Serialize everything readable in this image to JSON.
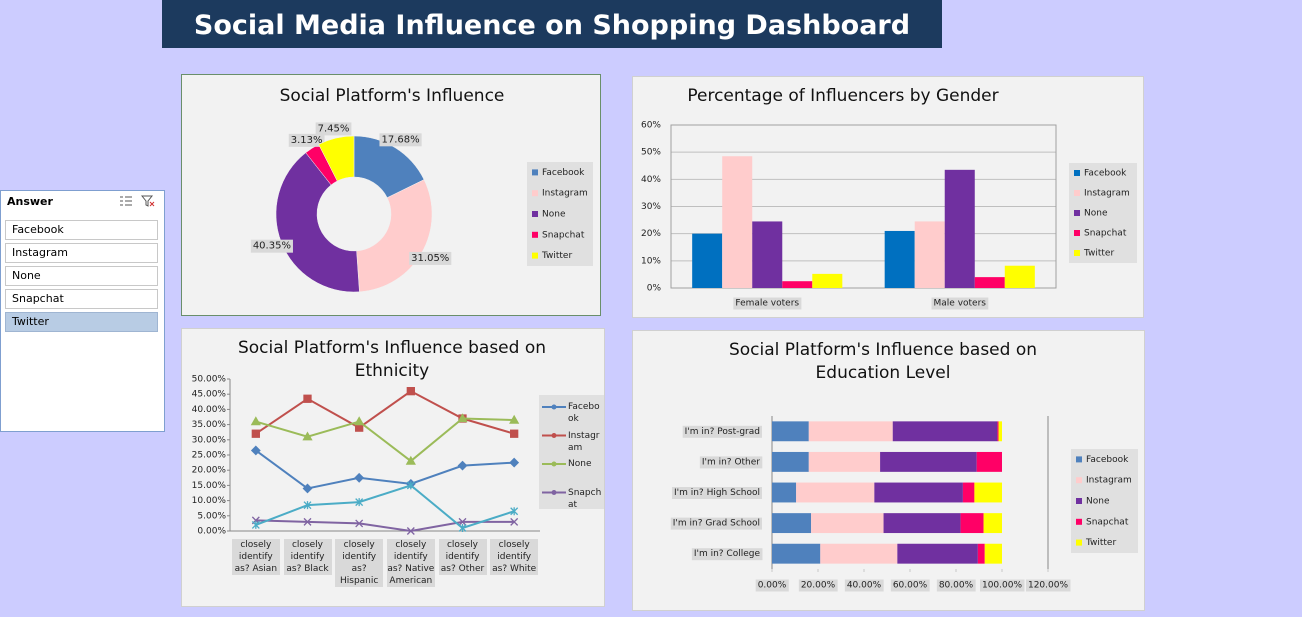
{
  "title": "Social Media Influence on Shopping Dashboard",
  "slicer": {
    "header": "Answer",
    "items": [
      "Facebook",
      "Instagram",
      "None",
      "Snapchat",
      "Twitter"
    ],
    "selected": 4
  },
  "chart_data": [
    {
      "type": "donut",
      "title": "Social Platform's Influence",
      "categories": [
        "Facebook",
        "Instagram",
        "None",
        "Snapchat",
        "Twitter"
      ],
      "values": [
        17.68,
        31.05,
        40.35,
        3.13,
        7.45
      ],
      "value_labels": [
        "17.68%",
        "31.05%",
        "40.35%",
        "3.13%",
        "7.45%"
      ],
      "colors": [
        "#4f81bd",
        "#ffcccc",
        "#7030a0",
        "#ff0066",
        "#ffff00"
      ],
      "legend": "right"
    },
    {
      "type": "bar",
      "title": "Percentage of Influencers by Gender",
      "categories": [
        "Female voters",
        "Male voters"
      ],
      "series": [
        {
          "name": "Facebook",
          "color": "#0070c0",
          "values": [
            20,
            21
          ]
        },
        {
          "name": "Instagram",
          "color": "#ffcccc",
          "values": [
            48.5,
            24.5
          ]
        },
        {
          "name": "None",
          "color": "#7030a0",
          "values": [
            24.5,
            43.5
          ]
        },
        {
          "name": "Snapchat",
          "color": "#ff0066",
          "values": [
            2.5,
            4
          ]
        },
        {
          "name": "Twitter",
          "color": "#ffff00",
          "values": [
            5.2,
            8.2
          ]
        }
      ],
      "ylim": [
        0,
        60
      ],
      "yticks": [
        {
          "value": 0,
          "label": "0%"
        },
        {
          "value": 10,
          "label": "10%"
        },
        {
          "value": 20,
          "label": "20%"
        },
        {
          "value": 30,
          "label": "30%"
        },
        {
          "value": 40,
          "label": "40%"
        },
        {
          "value": 50,
          "label": "50%"
        },
        {
          "value": 60,
          "label": "60%"
        }
      ],
      "grid": true,
      "legend": "right"
    },
    {
      "type": "line",
      "title": "Social Platform's Influence based on Ethnicity",
      "categories": [
        "closely identify as? Asian",
        "closely identify as? Black",
        "closely identify as? Hispanic",
        "closely identify as? Native American",
        "closely identify as? Other",
        "closely identify as? White"
      ],
      "series": [
        {
          "name": "Facebook",
          "color": "#4f81bd",
          "values": [
            26.5,
            14,
            17.5,
            15.5,
            21.5,
            22.5
          ]
        },
        {
          "name": "Instagram",
          "color": "#c0504d",
          "values": [
            32,
            43.5,
            34,
            46,
            37,
            32
          ]
        },
        {
          "name": "None",
          "color": "#9bbb59",
          "values": [
            36,
            31,
            36,
            23,
            37,
            36.5
          ]
        },
        {
          "name": "Snapchat",
          "color": "#8064a2",
          "values": [
            3.5,
            3,
            2.5,
            0,
            3,
            3
          ]
        },
        {
          "color": "#4bacc6",
          "values": [
            2,
            8.5,
            9.5,
            15,
            1,
            6.5
          ]
        }
      ],
      "ylim": [
        0,
        50
      ],
      "yticks": [
        {
          "value": 0,
          "label": "0.00%"
        },
        {
          "value": 5,
          "label": "5.00%"
        },
        {
          "value": 10,
          "label": "10.00%"
        },
        {
          "value": 15,
          "label": "15.00%"
        },
        {
          "value": 20,
          "label": "20.00%"
        },
        {
          "value": 25,
          "label": "25.00%"
        },
        {
          "value": 30,
          "label": "30.00%"
        },
        {
          "value": 35,
          "label": "35.00%"
        },
        {
          "value": 40,
          "label": "40.00%"
        },
        {
          "value": 45,
          "label": "45.00%"
        },
        {
          "value": 50,
          "label": "50.00%"
        }
      ],
      "legend": "right"
    },
    {
      "type": "hbar_stacked",
      "title": "Social Platform's Influence based on Education Level",
      "categories": [
        "I'm in? Post-grad",
        "I'm in? Other",
        "I'm in? High School",
        "I'm in? Grad School",
        "I'm in? College"
      ],
      "series": [
        {
          "name": "Facebook",
          "color": "#4f81bd",
          "values": [
            16,
            16,
            10.5,
            17,
            21
          ]
        },
        {
          "name": "Instagram",
          "color": "#ffcccc",
          "values": [
            36.5,
            31,
            34,
            31.5,
            33.5
          ]
        },
        {
          "name": "None",
          "color": "#7030a0",
          "values": [
            45.5,
            42,
            38.5,
            33.5,
            35
          ]
        },
        {
          "name": "Snapchat",
          "color": "#ff0066",
          "values": [
            0.5,
            11,
            5,
            10,
            3
          ]
        },
        {
          "name": "Twitter",
          "color": "#ffff00",
          "values": [
            1.5,
            0,
            12,
            8,
            7.5
          ]
        }
      ],
      "xlim": [
        0,
        120
      ],
      "xticks": [
        {
          "value": 0,
          "label": "0.00%"
        },
        {
          "value": 20,
          "label": "20.00%"
        },
        {
          "value": 40,
          "label": "40.00%"
        },
        {
          "value": 60,
          "label": "60.00%"
        },
        {
          "value": 80,
          "label": "80.00%"
        },
        {
          "value": 100,
          "label": "100.00%"
        },
        {
          "value": 120,
          "label": "120.00%"
        }
      ],
      "legend": "right"
    }
  ]
}
